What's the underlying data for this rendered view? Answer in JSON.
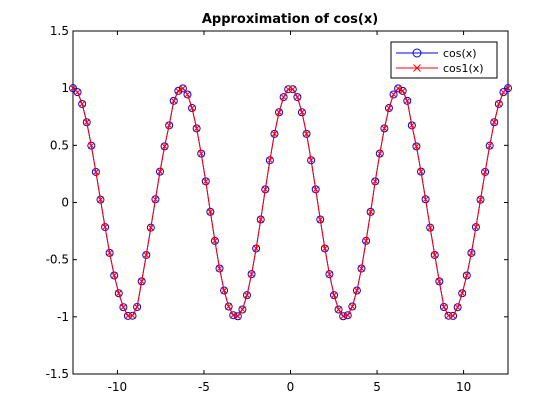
{
  "chart_data": {
    "type": "line",
    "title": "Approximation of cos(x)",
    "xlabel": "",
    "ylabel": "",
    "xlim": [
      -12.566,
      12.566
    ],
    "ylim": [
      -1.5,
      1.5
    ],
    "xticks": [
      -10,
      -5,
      0,
      5,
      10
    ],
    "xtick_labels": [
      "-10",
      "-5",
      "0",
      "5",
      "10"
    ],
    "yticks": [
      -1.5,
      -1,
      -0.5,
      0,
      0.5,
      1,
      1.5
    ],
    "ytick_labels": [
      "-1.5",
      "-1",
      "-0.5",
      "0",
      "0.5",
      "1",
      "1.5"
    ],
    "grid": false,
    "legend_position": "top-right",
    "series": [
      {
        "name": "cos(x)",
        "color": "#0000ff",
        "marker": "circle",
        "x": [
          -12.566,
          -12.301,
          -12.037,
          -11.772,
          -11.508,
          -11.243,
          -10.979,
          -10.714,
          -10.45,
          -10.185,
          -9.921,
          -9.656,
          -9.392,
          -9.127,
          -8.863,
          -8.598,
          -8.333,
          -8.069,
          -7.804,
          -7.54,
          -7.275,
          -7.011,
          -6.746,
          -6.482,
          -6.217,
          -5.953,
          -5.688,
          -5.424,
          -5.159,
          -4.895,
          -4.63,
          -4.366,
          -4.101,
          -3.837,
          -3.572,
          -3.307,
          -3.043,
          -2.778,
          -2.514,
          -2.249,
          -1.985,
          -1.72,
          -1.456,
          -1.191,
          -0.927,
          -0.662,
          -0.398,
          -0.133,
          0.133,
          0.398,
          0.662,
          0.927,
          1.191,
          1.456,
          1.72,
          1.985,
          2.249,
          2.514,
          2.778,
          3.043,
          3.307,
          3.572,
          3.837,
          4.101,
          4.366,
          4.63,
          4.895,
          5.159,
          5.424,
          5.688,
          5.953,
          6.217,
          6.482,
          6.746,
          7.011,
          7.275,
          7.54,
          7.804,
          8.069,
          8.333,
          8.598,
          8.863,
          9.127,
          9.392,
          9.656,
          9.921,
          10.185,
          10.45,
          10.714,
          10.979,
          11.243,
          11.508,
          11.772,
          12.037,
          12.301,
          12.566
        ],
        "y": [
          1.0,
          0.965,
          0.862,
          0.702,
          0.497,
          0.267,
          0.025,
          -0.215,
          -0.441,
          -0.638,
          -0.794,
          -0.916,
          -0.992,
          -0.99,
          -0.914,
          -0.69,
          -0.459,
          -0.22,
          0.028,
          0.27,
          0.491,
          0.675,
          0.889,
          0.976,
          0.998,
          0.945,
          0.826,
          0.648,
          0.428,
          0.185,
          -0.082,
          -0.336,
          -0.577,
          -0.77,
          -0.91,
          -0.986,
          -0.995,
          -0.936,
          -0.81,
          -0.627,
          -0.402,
          -0.149,
          0.115,
          0.37,
          0.6,
          0.789,
          0.922,
          0.991,
          0.991,
          0.922,
          0.789,
          0.6,
          0.37,
          0.115,
          -0.149,
          -0.402,
          -0.627,
          -0.81,
          -0.936,
          -0.995,
          -0.986,
          -0.91,
          -0.77,
          -0.577,
          -0.336,
          -0.082,
          0.185,
          0.428,
          0.648,
          0.826,
          0.945,
          0.998,
          0.976,
          0.889,
          0.675,
          0.491,
          0.27,
          0.028,
          -0.22,
          -0.459,
          -0.69,
          -0.914,
          -0.99,
          -0.992,
          -0.916,
          -0.794,
          -0.638,
          -0.441,
          -0.215,
          0.025,
          0.267,
          0.497,
          0.702,
          0.862,
          0.965,
          1.0
        ]
      },
      {
        "name": "cos1(x)",
        "color": "#ff0000",
        "marker": "x",
        "x": [
          -12.566,
          -12.301,
          -12.037,
          -11.772,
          -11.508,
          -11.243,
          -10.979,
          -10.714,
          -10.45,
          -10.185,
          -9.921,
          -9.656,
          -9.392,
          -9.127,
          -8.863,
          -8.598,
          -8.333,
          -8.069,
          -7.804,
          -7.54,
          -7.275,
          -7.011,
          -6.746,
          -6.482,
          -6.217,
          -5.953,
          -5.688,
          -5.424,
          -5.159,
          -4.895,
          -4.63,
          -4.366,
          -4.101,
          -3.837,
          -3.572,
          -3.307,
          -3.043,
          -2.778,
          -2.514,
          -2.249,
          -1.985,
          -1.72,
          -1.456,
          -1.191,
          -0.927,
          -0.662,
          -0.398,
          -0.133,
          0.133,
          0.398,
          0.662,
          0.927,
          1.191,
          1.456,
          1.72,
          1.985,
          2.249,
          2.514,
          2.778,
          3.043,
          3.307,
          3.572,
          3.837,
          4.101,
          4.366,
          4.63,
          4.895,
          5.159,
          5.424,
          5.688,
          5.953,
          6.217,
          6.482,
          6.746,
          7.011,
          7.275,
          7.54,
          7.804,
          8.069,
          8.333,
          8.598,
          8.863,
          9.127,
          9.392,
          9.656,
          9.921,
          10.185,
          10.45,
          10.714,
          10.979,
          11.243,
          11.508,
          11.772,
          12.037,
          12.301,
          12.566
        ],
        "y": [
          1.0,
          0.965,
          0.862,
          0.702,
          0.497,
          0.267,
          0.025,
          -0.215,
          -0.441,
          -0.638,
          -0.794,
          -0.916,
          -0.992,
          -0.99,
          -0.914,
          -0.69,
          -0.459,
          -0.22,
          0.028,
          0.27,
          0.491,
          0.675,
          0.889,
          0.976,
          0.998,
          0.945,
          0.826,
          0.648,
          0.428,
          0.185,
          -0.082,
          -0.336,
          -0.577,
          -0.77,
          -0.91,
          -0.986,
          -0.995,
          -0.936,
          -0.81,
          -0.627,
          -0.402,
          -0.149,
          0.115,
          0.37,
          0.6,
          0.789,
          0.922,
          0.991,
          0.991,
          0.922,
          0.789,
          0.6,
          0.37,
          0.115,
          -0.149,
          -0.402,
          -0.627,
          -0.81,
          -0.936,
          -0.995,
          -0.986,
          -0.91,
          -0.77,
          -0.577,
          -0.336,
          -0.082,
          0.185,
          0.428,
          0.648,
          0.826,
          0.945,
          0.998,
          0.976,
          0.889,
          0.675,
          0.491,
          0.27,
          0.028,
          -0.22,
          -0.459,
          -0.69,
          -0.914,
          -0.99,
          -0.992,
          -0.916,
          -0.794,
          -0.638,
          -0.441,
          -0.215,
          0.025,
          0.267,
          0.497,
          0.702,
          0.862,
          0.965,
          1.0
        ]
      }
    ]
  }
}
